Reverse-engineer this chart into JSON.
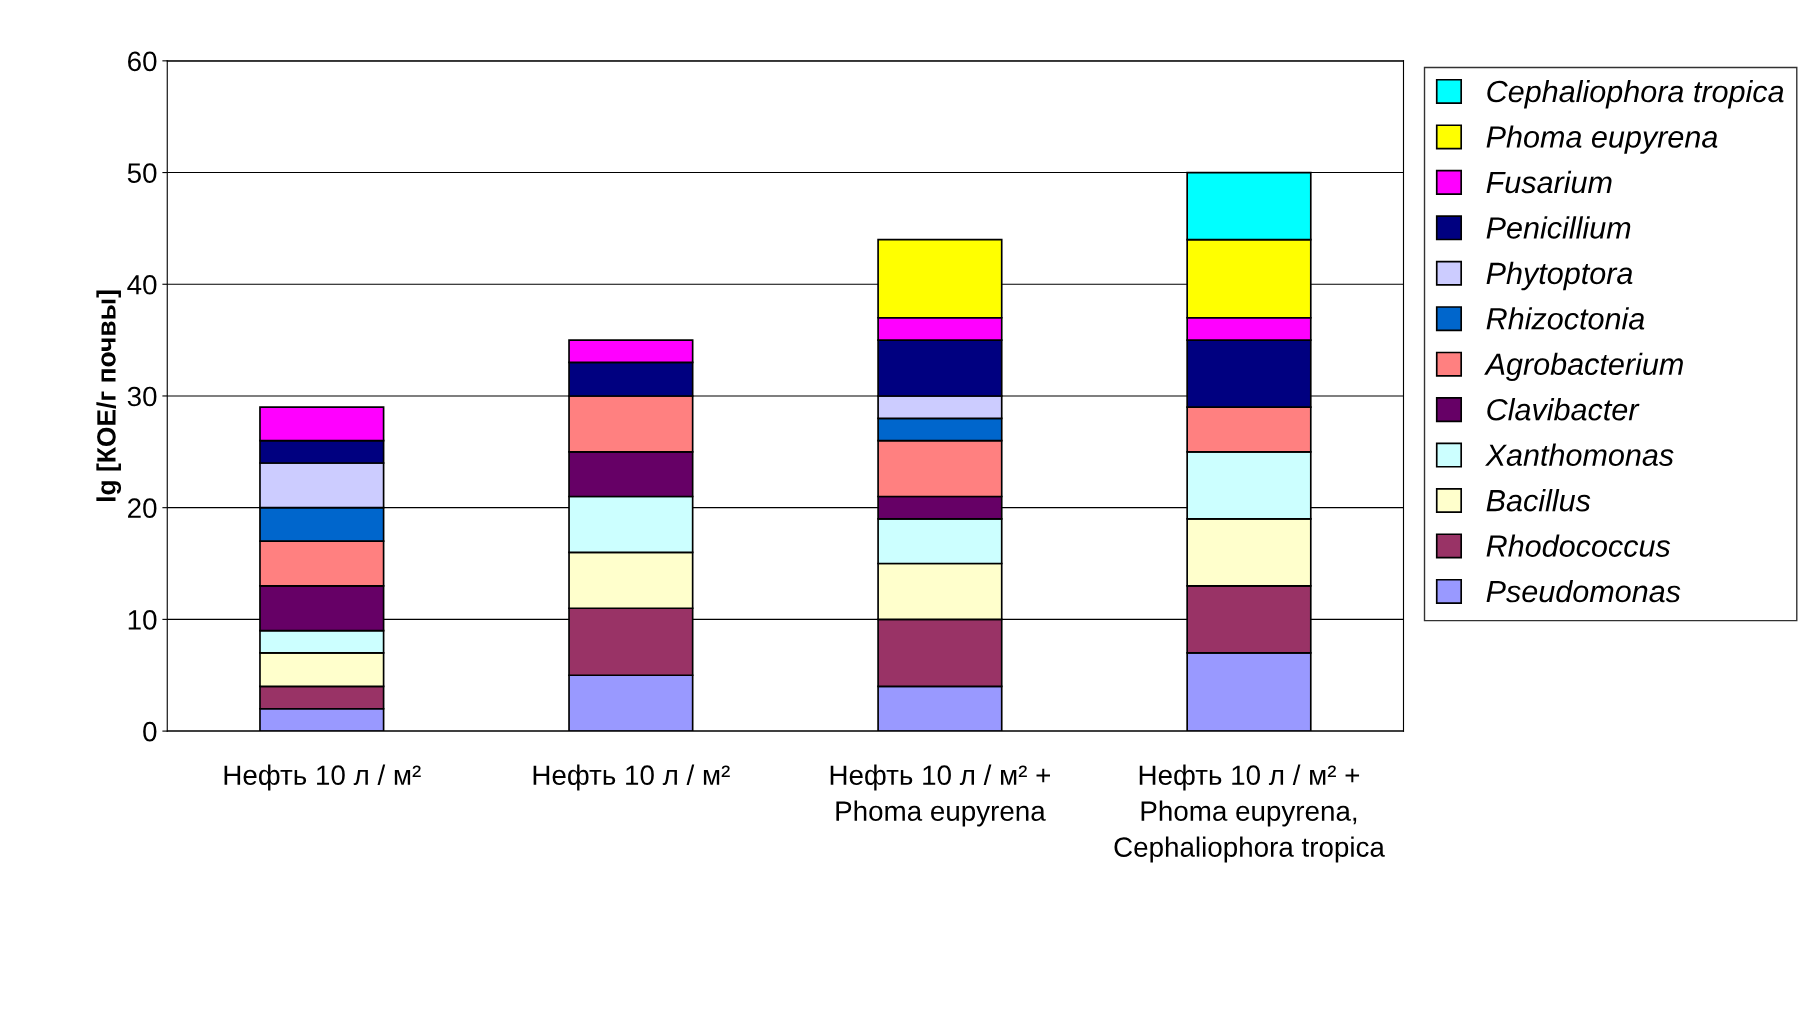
{
  "chart_data": {
    "type": "bar",
    "stacked": true,
    "ylabel": "lg [КОЕ/г почвы]",
    "categories": [
      "Нефть 10 л / м²",
      "Нефть 10 л / м²",
      "Нефть 10 л / м² + Phoma eupyrena",
      "Нефть 10 л / м² + Phoma eupyrena, Cephaliophora tropica"
    ],
    "series": [
      {
        "name": "Pseudomonas",
        "color": "#9999ff",
        "values": [
          2,
          5,
          4,
          7
        ]
      },
      {
        "name": "Rhodococcus",
        "color": "#993366",
        "values": [
          2,
          6,
          6,
          6
        ]
      },
      {
        "name": "Bacillus",
        "color": "#ffffcc",
        "values": [
          3,
          5,
          5,
          6
        ]
      },
      {
        "name": "Xanthomonas",
        "color": "#ccffff",
        "values": [
          2,
          5,
          4,
          6
        ]
      },
      {
        "name": "Clavibacter",
        "color": "#660066",
        "values": [
          4,
          4,
          2,
          null
        ]
      },
      {
        "name": "Agrobacterium",
        "color": "#ff8080",
        "values": [
          4,
          5,
          5,
          4
        ]
      },
      {
        "name": "Rhizoctonia",
        "color": "#0066cc",
        "values": [
          3,
          null,
          2,
          null
        ]
      },
      {
        "name": "Phytoptora",
        "color": "#ccccff",
        "values": [
          4,
          null,
          2,
          null
        ]
      },
      {
        "name": "Penicillium",
        "color": "#000080",
        "values": [
          2,
          3,
          5,
          6
        ]
      },
      {
        "name": "Fusarium",
        "color": "#ff00ff",
        "values": [
          3,
          2,
          2,
          2
        ]
      },
      {
        "name": "Phoma eupyrena",
        "color": "#ffff00",
        "values": [
          null,
          null,
          7,
          7
        ]
      },
      {
        "name": "Cephaliophora tropica",
        "color": "#00ffff",
        "values": [
          null,
          null,
          null,
          6
        ]
      }
    ],
    "ylim": [
      0,
      60
    ],
    "yticks": [
      0,
      10,
      20,
      30,
      40,
      50,
      60
    ],
    "grid": "y",
    "legend": "right"
  }
}
